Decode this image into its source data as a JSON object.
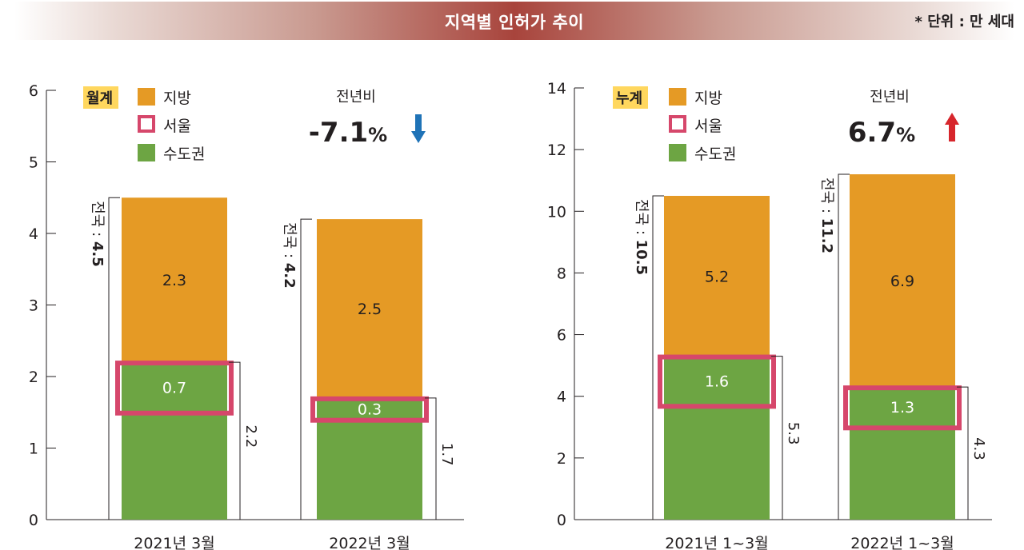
{
  "header": {
    "title": "지역별 인허가 추이",
    "unit": "* 단위 : 만 세대"
  },
  "colors": {
    "local": "#e59a25",
    "capital": "#6da543",
    "seoul": "#d6476b",
    "badge": "#ffd75e",
    "arrow_down": "#1f73b7",
    "arrow_up": "#d7262c"
  },
  "legend": {
    "local": "지방",
    "seoul": "서울",
    "capital": "수도권"
  },
  "chart_data": [
    {
      "type": "bar",
      "stacked": true,
      "badge": "월계",
      "yoy_label": "전년비",
      "yoy_value": "-7.1",
      "yoy_unit": "%",
      "yoy_direction": "down",
      "categories": [
        "2021년 3월",
        "2022년 3월"
      ],
      "ylim": [
        0,
        6
      ],
      "yticks": [
        0,
        1,
        2,
        3,
        4,
        5,
        6
      ],
      "series": [
        {
          "name": "수도권",
          "values": [
            2.2,
            1.7
          ]
        },
        {
          "name": "지방",
          "values": [
            2.3,
            2.5
          ]
        }
      ],
      "seoul": [
        0.7,
        0.3
      ],
      "totals": [
        4.5,
        4.2
      ],
      "total_labels": [
        "전국 : 4.5",
        "전국 : 4.2"
      ],
      "total_prefix": "전국 : ",
      "capital_labels": [
        "2.2",
        "1.7"
      ],
      "local_labels": [
        "2.3",
        "2.5"
      ],
      "seoul_labels": [
        "0.7",
        "0.3"
      ]
    },
    {
      "type": "bar",
      "stacked": true,
      "badge": "누계",
      "yoy_label": "전년비",
      "yoy_value": "6.7",
      "yoy_unit": "%",
      "yoy_direction": "up",
      "categories": [
        "2021년 1~3월",
        "2022년 1~3월"
      ],
      "ylim": [
        0,
        14
      ],
      "yticks": [
        0,
        2,
        4,
        6,
        8,
        10,
        12,
        14
      ],
      "series": [
        {
          "name": "수도권",
          "values": [
            5.3,
            4.3
          ]
        },
        {
          "name": "지방",
          "values": [
            5.2,
            6.9
          ]
        }
      ],
      "seoul": [
        1.6,
        1.3
      ],
      "totals": [
        10.5,
        11.2
      ],
      "total_labels": [
        "전국 : 10.5",
        "전국 : 11.2"
      ],
      "total_prefix": "전국 : ",
      "capital_labels": [
        "5.3",
        "4.3"
      ],
      "local_labels": [
        "5.2",
        "6.9"
      ],
      "seoul_labels": [
        "1.6",
        "1.3"
      ]
    }
  ]
}
